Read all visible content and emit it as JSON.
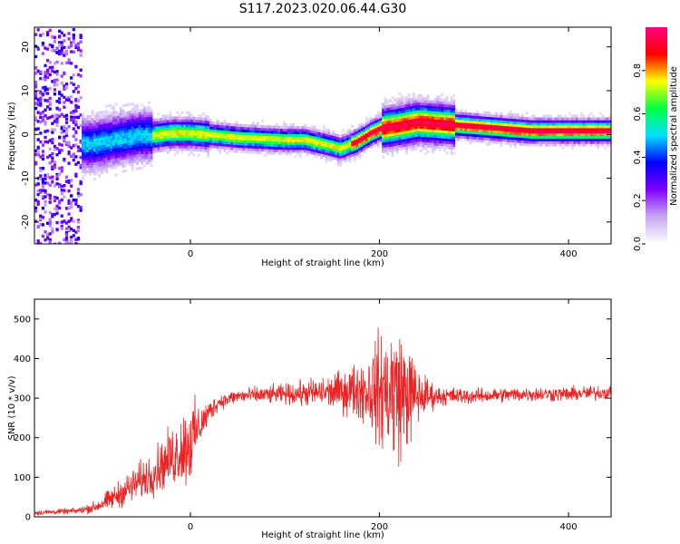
{
  "title": "S117.2023.020.06.44.G30",
  "chart_data": [
    {
      "type": "heatmap",
      "xlabel": "Height of straight line (km)",
      "ylabel": "Frequency (Hz)",
      "xlim": [
        -165,
        445
      ],
      "ylim": [
        -25,
        24.5
      ],
      "xticks": [
        0,
        200,
        400
      ],
      "yticks": [
        -20,
        -10,
        0,
        10,
        20
      ],
      "colorbar": {
        "label": "Normalized spectral amplitude",
        "range": [
          0,
          1
        ],
        "ticks": [
          0.0,
          0.2,
          0.4,
          0.6,
          0.8
        ],
        "colors": [
          "#ffffff",
          "#c8a8f0",
          "#8000ff",
          "#0000ff",
          "#00e0ff",
          "#00ff40",
          "#ffff00",
          "#ff0000",
          "#ff0080"
        ]
      },
      "ridge": {
        "x": [
          -105,
          -80,
          -55,
          -40,
          -20,
          0,
          50,
          100,
          120,
          140,
          158,
          175,
          190,
          200,
          215,
          240,
          270,
          300,
          330,
          360,
          400,
          445
        ],
        "y": [
          -2.5,
          -1.5,
          -0.5,
          -0.5,
          0,
          0,
          -1,
          -1.5,
          -1.5,
          -2.5,
          -3.5,
          -2,
          0,
          1,
          1.5,
          2.5,
          2,
          1.5,
          1,
          0.5,
          0.5,
          0.5
        ]
      }
    },
    {
      "type": "line",
      "xlabel": "Height of straight line (km)",
      "ylabel": "SNR (10 * v/v)",
      "xlim": [
        -165,
        445
      ],
      "ylim": [
        0,
        550
      ],
      "xticks": [
        0,
        200,
        400
      ],
      "yticks": [
        0,
        100,
        200,
        300,
        400,
        500
      ],
      "color": "#ee2222",
      "envelope": {
        "x": [
          -165,
          -120,
          -100,
          -80,
          -60,
          -40,
          -20,
          0,
          10,
          20,
          30,
          50,
          100,
          150,
          180,
          200,
          210,
          220,
          230,
          240,
          260,
          300,
          350,
          400,
          445
        ],
        "mean": [
          10,
          15,
          25,
          50,
          80,
          110,
          150,
          190,
          230,
          265,
          290,
          305,
          310,
          315,
          320,
          320,
          320,
          315,
          310,
          305,
          305,
          305,
          310,
          310,
          315
        ],
        "spread": [
          5,
          6,
          12,
          25,
          35,
          45,
          60,
          90,
          40,
          25,
          15,
          15,
          20,
          35,
          60,
          110,
          150,
          140,
          110,
          60,
          20,
          15,
          15,
          15,
          15
        ]
      }
    }
  ]
}
